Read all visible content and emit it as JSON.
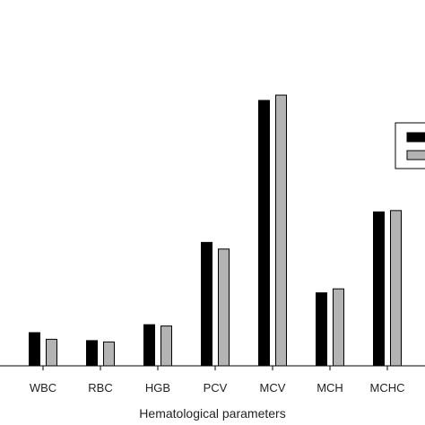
{
  "chart_data": {
    "type": "bar",
    "title": "",
    "xlabel": "Hematological parameters",
    "ylabel": "",
    "categories": [
      "WBC",
      "RBC",
      "HGB",
      "PCV",
      "MCV",
      "MCH",
      "MCHC"
    ],
    "ylim": [
      0,
      100
    ],
    "grid": false,
    "legend_position": "right",
    "series": [
      {
        "color": "#000000",
        "values": [
          12.5,
          9.5,
          15.5,
          46.5,
          100,
          27.5,
          58
        ]
      },
      {
        "color": "#b3b3b3",
        "values": [
          10,
          9,
          15,
          44,
          102,
          29,
          58.5
        ]
      }
    ]
  }
}
